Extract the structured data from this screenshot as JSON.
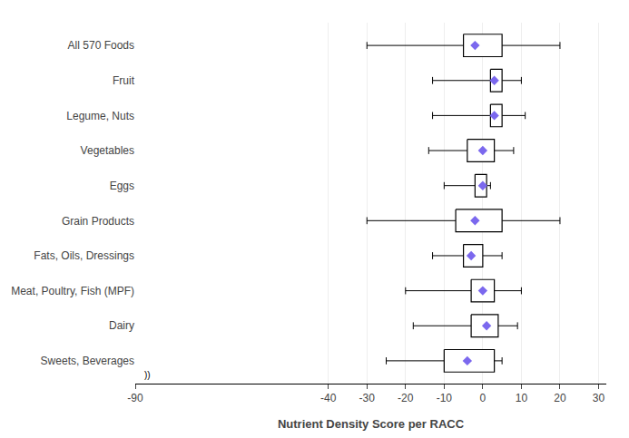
{
  "chart_data": {
    "type": "box",
    "orientation": "horizontal",
    "xlabel": "Nutrient Density Score per RACC",
    "categories": [
      "All 570 Foods",
      "Fruit",
      "Legume, Nuts",
      "Vegetables",
      "Eggs",
      "Grain Products",
      "Fats, Oils, Dressings",
      "Meat, Poultry, Fish (MPF)",
      "Dairy",
      "Sweets, Beverages"
    ],
    "values": [
      {
        "min": -30,
        "q1": -5,
        "q3": 5,
        "max": 20,
        "mean": -2
      },
      {
        "min": -13,
        "q1": 2,
        "q3": 5,
        "max": 10,
        "mean": 3
      },
      {
        "min": -13,
        "q1": 2,
        "q3": 5,
        "max": 11,
        "mean": 3
      },
      {
        "min": -14,
        "q1": -4,
        "q3": 3,
        "max": 8,
        "mean": 0
      },
      {
        "min": -10,
        "q1": -2,
        "q3": 1,
        "max": 2,
        "mean": 0
      },
      {
        "min": -30,
        "q1": -7,
        "q3": 5,
        "max": 20,
        "mean": -2
      },
      {
        "min": -13,
        "q1": -5,
        "q3": 0,
        "max": 5,
        "mean": -3
      },
      {
        "min": -20,
        "q1": -3,
        "q3": 3,
        "max": 10,
        "mean": 0
      },
      {
        "min": -18,
        "q1": -3,
        "q3": 4,
        "max": 9,
        "mean": 1
      },
      {
        "min": -25,
        "q1": -10,
        "q3": 3,
        "max": 5,
        "mean": -4
      }
    ],
    "color": "#7B68EE",
    "xlim": [
      -90,
      32
    ],
    "xticks": [
      -90,
      -40,
      -30,
      -20,
      -10,
      0,
      10,
      20,
      30
    ],
    "grid": true,
    "annotations": [
      "))"
    ]
  }
}
